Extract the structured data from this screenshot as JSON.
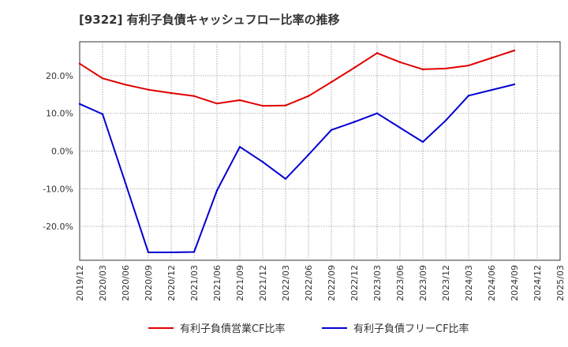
{
  "title": "[9322]  有利子負債キャッシュフロー比率の推移",
  "chart_data": {
    "type": "line",
    "title": "[9322]  有利子負債キャッシュフロー比率の推移",
    "xlabel": "",
    "ylabel": "",
    "x": [
      "2019/12",
      "2020/03",
      "2020/06",
      "2020/09",
      "2020/12",
      "2021/03",
      "2021/06",
      "2021/09",
      "2021/12",
      "2022/03",
      "2022/06",
      "2022/09",
      "2022/12",
      "2023/03",
      "2023/06",
      "2023/09",
      "2023/12",
      "2024/03",
      "2024/06",
      "2024/09",
      "2024/12",
      "2025/03"
    ],
    "ylim": [
      -29,
      29
    ],
    "yticks": [
      20,
      10,
      0,
      -10,
      -20
    ],
    "ytick_labels": [
      "20.0%",
      "10.0%",
      "0.0%",
      "-10.0%",
      "-20.0%"
    ],
    "grid": true,
    "legend_position": "bottom",
    "series": [
      {
        "name": "有利子負債営業CF比率",
        "color": "#e00000",
        "values": [
          23.2,
          19.3,
          17.6,
          16.3,
          15.4,
          14.6,
          12.6,
          13.5,
          12.0,
          12.1,
          14.6,
          18.3,
          22.1,
          26.0,
          23.6,
          21.7,
          21.9,
          22.7,
          24.7,
          26.7,
          null,
          null
        ]
      },
      {
        "name": "有利子負債フリーCF比率",
        "color": "#0000d0",
        "values": [
          12.5,
          9.8,
          -8.5,
          -26.9,
          -26.9,
          -26.8,
          -10.5,
          1.1,
          -2.9,
          -7.4,
          -1.0,
          5.6,
          7.7,
          10.0,
          6.2,
          2.4,
          8.1,
          14.7,
          16.2,
          17.7,
          null,
          null
        ]
      }
    ]
  }
}
